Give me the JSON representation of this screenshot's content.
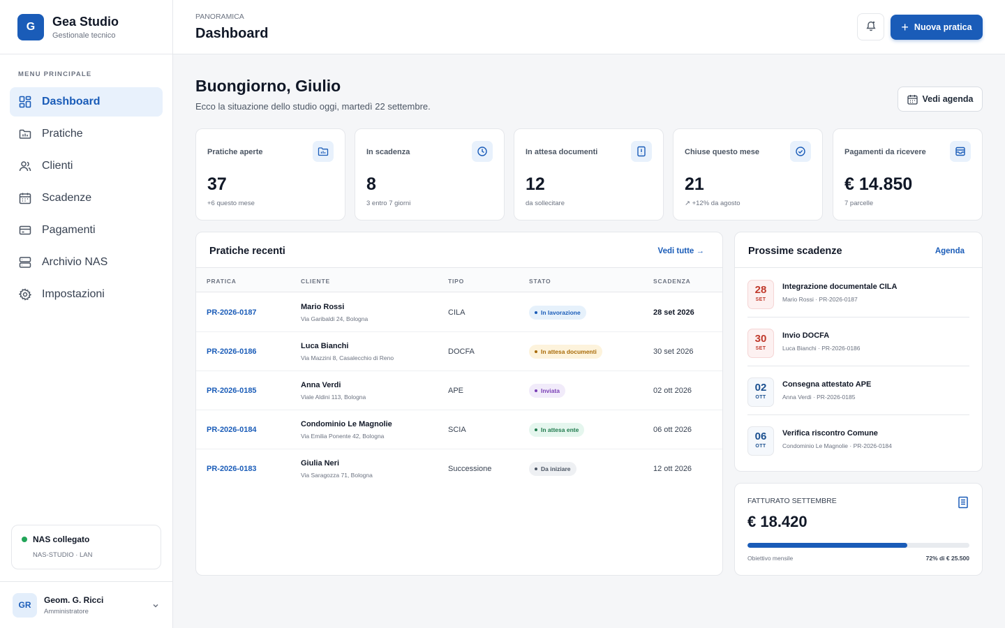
{
  "brand": {
    "logo": "G",
    "title": "Gea Studio",
    "subtitle": "Gestionale tecnico"
  },
  "sidebar": {
    "section_label": "MENU PRINCIPALE",
    "items": [
      {
        "label": "Dashboard",
        "icon": "grid-icon",
        "active": true
      },
      {
        "label": "Pratiche",
        "icon": "folder-icon"
      },
      {
        "label": "Clienti",
        "icon": "users-icon"
      },
      {
        "label": "Scadenze",
        "icon": "calendar-icon"
      },
      {
        "label": "Pagamenti",
        "icon": "card-icon"
      },
      {
        "label": "Archivio NAS",
        "icon": "server-icon"
      },
      {
        "label": "Impostazioni",
        "icon": "gear-icon"
      }
    ],
    "nas": {
      "title": "NAS collegato",
      "subtitle": "NAS-STUDIO · LAN",
      "status_color": "#22a559"
    },
    "user": {
      "initials": "GR",
      "name": "Geom. G. Ricci",
      "role": "Amministratore"
    }
  },
  "header": {
    "breadcrumb": "PANORAMICA",
    "title": "Dashboard",
    "new_button": "Nuova pratica"
  },
  "main": {
    "greeting": "Buongiorno, Giulio",
    "greeting_sub": "Ecco la situazione dello studio oggi, martedì 22 settembre.",
    "agenda_button": "Vedi agenda",
    "kpis": [
      {
        "label": "Pratiche aperte",
        "value": "37",
        "sub": "+6 questo mese",
        "icon": "folder-icon"
      },
      {
        "label": "In scadenza",
        "value": "8",
        "sub": "3 entro 7 giorni",
        "icon": "clock-icon"
      },
      {
        "label": "In attesa documenti",
        "value": "12",
        "sub": "da sollecitare",
        "icon": "alert-doc-icon"
      },
      {
        "label": "Chiuse questo mese",
        "value": "21",
        "sub": "↗ +12% da agosto",
        "icon": "check-circle-icon"
      },
      {
        "label": "Pagamenti da ricevere",
        "value": "€ 14.850",
        "sub": "7 parcelle",
        "icon": "mail-icon"
      }
    ],
    "recent": {
      "title": "Pratiche recenti",
      "link": "Vedi tutte →",
      "columns": [
        "PRATICA",
        "CLIENTE",
        "TIPO",
        "STATO",
        "SCADENZA"
      ],
      "rows": [
        {
          "code": "PR-2026-0187",
          "client": "Mario Rossi",
          "address": "Via Garibaldi 24, Bologna",
          "type": "CILA",
          "status": "In lavorazione",
          "status_bg": "#e6f1fb",
          "status_fg": "#1a5cb8",
          "due": "28 set 2026",
          "due_bold": true
        },
        {
          "code": "PR-2026-0186",
          "client": "Luca Bianchi",
          "address": "Via Mazzini 8, Casalecchio di Reno",
          "type": "DOCFA",
          "status": "In attesa documenti",
          "status_bg": "#fdf3dc",
          "status_fg": "#a86a07",
          "due": "30 set 2026",
          "due_bold": false
        },
        {
          "code": "PR-2026-0185",
          "client": "Anna Verdi",
          "address": "Viale Aldini 113, Bologna",
          "type": "APE",
          "status": "Inviata",
          "status_bg": "#f1ebfa",
          "status_fg": "#7a3fb5",
          "due": "02 ott 2026",
          "due_bold": false
        },
        {
          "code": "PR-2026-0184",
          "client": "Condominio Le Magnolie",
          "address": "Via Emilia Ponente 42, Bologna",
          "type": "SCIA",
          "status": "In attesa ente",
          "status_bg": "#e5f6ee",
          "status_fg": "#1f7a4d",
          "due": "06 ott 2026",
          "due_bold": false
        },
        {
          "code": "PR-2026-0183",
          "client": "Giulia Neri",
          "address": "Via Saragozza 71, Bologna",
          "type": "Successione",
          "status": "Da iniziare",
          "status_bg": "#eef0f3",
          "status_fg": "#4b5563",
          "due": "12 ott 2026",
          "due_bold": false
        }
      ]
    },
    "deadlines": {
      "title": "Prossime scadenze",
      "link": "Agenda",
      "items": [
        {
          "day": "28",
          "month": "SET",
          "urgent": true,
          "title": "Integrazione documentale CILA",
          "sub": "Mario Rossi · PR-2026-0187"
        },
        {
          "day": "30",
          "month": "SET",
          "urgent": true,
          "title": "Invio DOCFA",
          "sub": "Luca Bianchi · PR-2026-0186"
        },
        {
          "day": "02",
          "month": "OTT",
          "urgent": false,
          "title": "Consegna attestato APE",
          "sub": "Anna Verdi · PR-2026-0185"
        },
        {
          "day": "06",
          "month": "OTT",
          "urgent": false,
          "title": "Verifica riscontro Comune",
          "sub": "Condominio Le Magnolie · PR-2026-0184"
        }
      ]
    },
    "revenue": {
      "label": "FATTURATO SETTEMBRE",
      "value": "€ 18.420",
      "progress": 0.72,
      "footer_left": "Obiettivo mensile",
      "footer_right": "72% di € 25.500"
    }
  },
  "colors": {
    "accent": "#1a5cb8",
    "urgent": "#c0392b"
  }
}
